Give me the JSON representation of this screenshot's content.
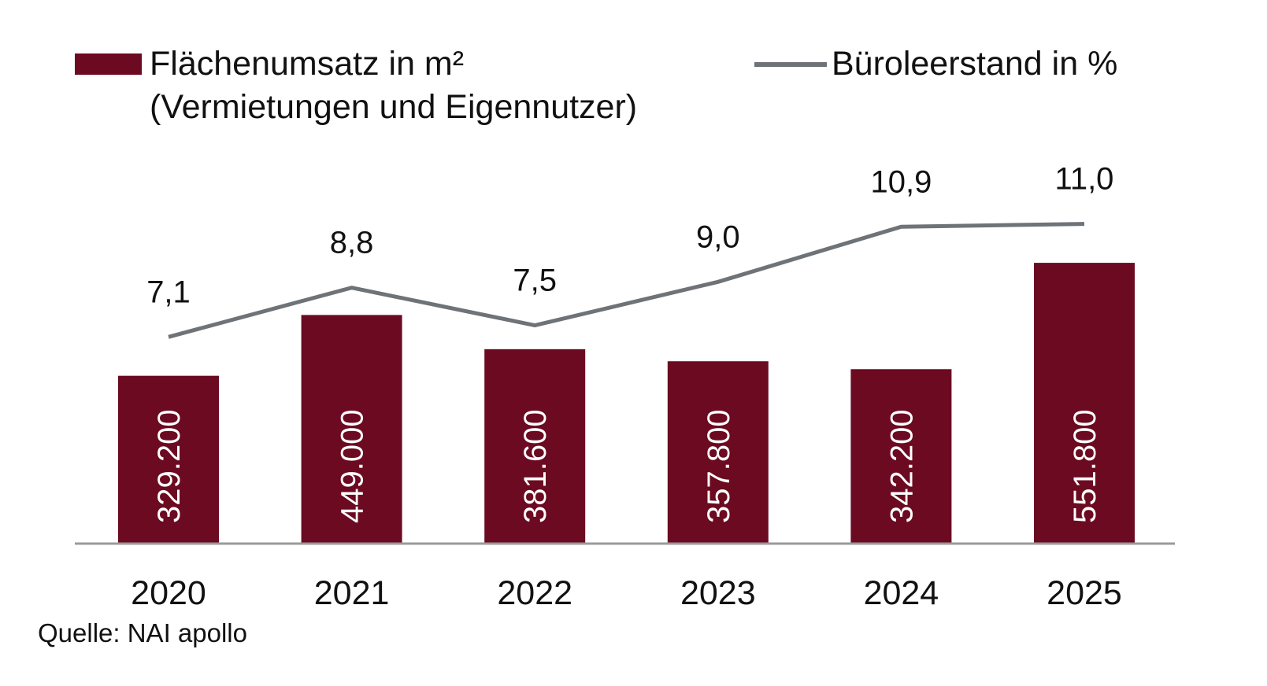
{
  "chart_data": {
    "type": "bar+line",
    "categories": [
      "2020",
      "2021",
      "2022",
      "2023",
      "2024",
      "2025"
    ],
    "series": [
      {
        "name": "Flächenumsatz in m²",
        "name_line2": "(Vermietungen und Eigennutzer)",
        "type": "bar",
        "axis": "left",
        "values": [
          329200,
          449000,
          381600,
          357800,
          342200,
          551800
        ],
        "labels": [
          "329.200",
          "449.000",
          "381.600",
          "357.800",
          "342.200",
          "551.800"
        ],
        "color": "#6b0a20"
      },
      {
        "name": "Büroleerstand in %",
        "type": "line",
        "axis": "right",
        "values": [
          7.1,
          8.8,
          7.5,
          9.0,
          10.9,
          11.0
        ],
        "labels": [
          "7,1",
          "8,8",
          "7,5",
          "9,0",
          "10,9",
          "11,0"
        ],
        "color": "#6e7378"
      }
    ],
    "ylim_bar": [
      0,
      1000000
    ],
    "ylim_line": [
      0,
      17.5
    ],
    "grid": false,
    "legend_placement": "top",
    "source": "Quelle: NAI apollo"
  }
}
